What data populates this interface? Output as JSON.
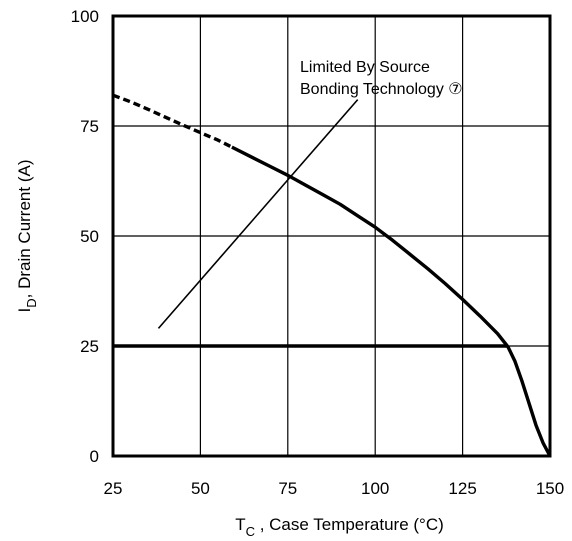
{
  "chart_data": {
    "type": "line",
    "xlabel": {
      "main": "T",
      "sub": "C",
      "rest": " , Case Temperature (°C)"
    },
    "ylabel": {
      "main": "I",
      "sub": "D",
      "rest": ",  Drain Current (A)"
    },
    "xlim": [
      25,
      150
    ],
    "ylim": [
      0,
      100
    ],
    "x_ticks": [
      "25",
      "50",
      "75",
      "100",
      "125",
      "150"
    ],
    "y_ticks": [
      "0",
      "25",
      "50",
      "75",
      "100"
    ],
    "grid": true,
    "series": [
      {
        "style": "dashed",
        "x": [
          25,
          30,
          35,
          40,
          45,
          50,
          55,
          59
        ],
        "y": [
          82,
          80.5,
          78.8,
          77,
          75.2,
          73.5,
          71.8,
          70.2
        ]
      },
      {
        "style": "solid",
        "x": [
          59,
          65,
          70,
          75,
          80,
          85,
          90,
          95,
          100,
          105,
          110,
          115,
          120,
          125,
          130,
          135,
          138,
          140,
          142,
          144,
          146,
          148,
          150
        ],
        "y": [
          70.2,
          67.8,
          65.8,
          63.8,
          61.6,
          59.4,
          57.2,
          54.6,
          52,
          49,
          45.8,
          42.6,
          39.2,
          35.6,
          31.8,
          27.8,
          24.8,
          21.5,
          17,
          12,
          7,
          3,
          0
        ]
      },
      {
        "style": "solid",
        "x": [
          25,
          138
        ],
        "y": [
          25,
          25
        ]
      }
    ],
    "annotation": {
      "line1": "Limited By Source",
      "line2": "Bonding Technology ⑦",
      "pointer_from": [
        38,
        29
      ],
      "pointer_to": [
        95,
        81
      ]
    }
  }
}
